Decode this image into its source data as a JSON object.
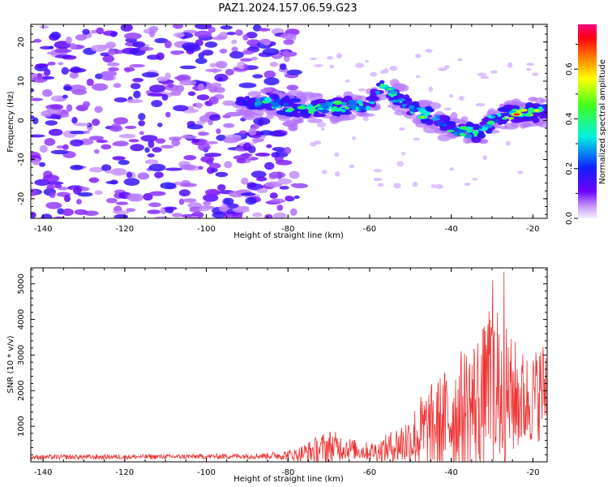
{
  "figure_title": "PAZ1.2024.157.06.59.G23",
  "chart_data": [
    {
      "type": "heatmap",
      "xlabel": "Height of straight line (km)",
      "ylabel": "Frequency (Hz)",
      "xlim": [
        -143,
        -16.5
      ],
      "ylim": [
        -25,
        24.5
      ],
      "xticks": [
        -140,
        -120,
        -100,
        -80,
        -60,
        -40,
        -20
      ],
      "yticks": [
        -20,
        -10,
        0,
        10,
        20
      ],
      "colorbar": {
        "label": "Normalized spectral amplitude",
        "range": [
          0,
          0.78
        ],
        "ticks": [
          0.0,
          0.2,
          0.4,
          0.6
        ]
      },
      "ridge": {
        "description_points_x": [
          -92,
          -85,
          -80,
          -75,
          -70,
          -65,
          -60,
          -57,
          -55,
          -50,
          -45,
          -40,
          -37,
          -33,
          -30,
          -26,
          -22,
          -18
        ],
        "description_points_freq": [
          4,
          4.5,
          3.5,
          3,
          3.5,
          3.5,
          4,
          8,
          7,
          3,
          1,
          -2,
          -3,
          -3,
          0,
          1.5,
          2,
          2
        ]
      }
    },
    {
      "type": "line",
      "xlabel": "Height of straight line (km)",
      "ylabel": "SNR (10 * v/v)",
      "xlim": [
        -143,
        -16.5
      ],
      "ylim": [
        0,
        5450
      ],
      "xticks": [
        -140,
        -120,
        -100,
        -80,
        -60,
        -40,
        -20
      ],
      "yticks": [
        1000,
        2000,
        3000,
        4000,
        5000
      ],
      "series_color": "#ee3333",
      "envelope": {
        "x": [
          -143,
          -120,
          -100,
          -85,
          -78,
          -74,
          -70,
          -66,
          -62,
          -58,
          -54,
          -50,
          -47,
          -44,
          -41,
          -38,
          -35,
          -32,
          -30,
          -28,
          -26,
          -24,
          -22,
          -20,
          -18,
          -16.5
        ],
        "base": [
          130,
          140,
          150,
          170,
          200,
          300,
          420,
          400,
          300,
          300,
          450,
          600,
          800,
          1000,
          1200,
          1400,
          1600,
          1700,
          2000,
          1900,
          1800,
          1800,
          1700,
          1800,
          2000,
          2200
        ],
        "spread": [
          70,
          70,
          70,
          90,
          180,
          350,
          500,
          350,
          250,
          300,
          500,
          800,
          1200,
          1300,
          1500,
          1700,
          1900,
          2200,
          2600,
          2400,
          1800,
          1600,
          1400,
          1300,
          1400,
          1300
        ]
      }
    }
  ]
}
